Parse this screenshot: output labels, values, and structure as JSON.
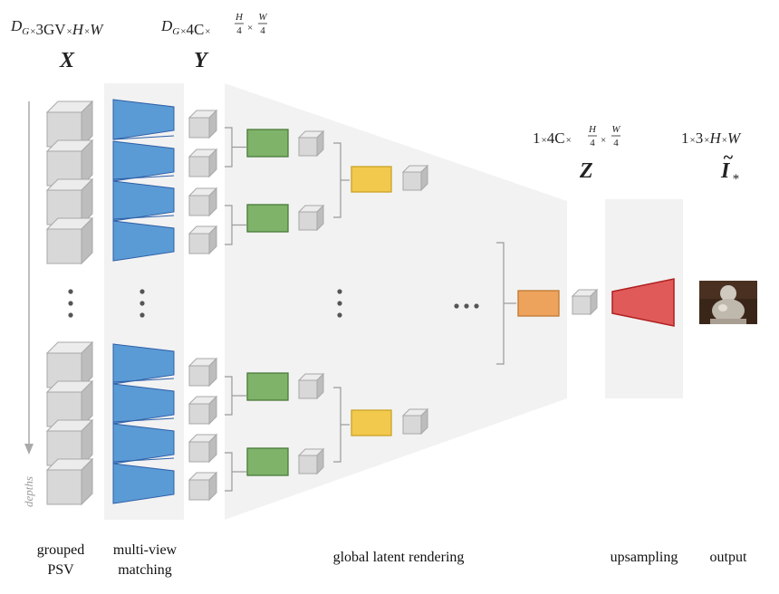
{
  "top_dims": {
    "x_dim": {
      "a": "D",
      "a_sub": "G",
      "b": "3GV",
      "c": "H",
      "d": "W"
    },
    "y_dim": {
      "a": "D",
      "a_sub": "G",
      "b": "4C",
      "h_num": "H",
      "h_den": "4",
      "w_num": "W",
      "w_den": "4"
    },
    "z_dim": {
      "a": "1",
      "b": "4C",
      "h_num": "H",
      "h_den": "4",
      "w_num": "W",
      "w_den": "4"
    },
    "i_dim": {
      "a": "1",
      "b": "3",
      "c": "H",
      "d": "W"
    },
    "times": "×"
  },
  "symbols": {
    "x": "X",
    "y": "Y",
    "z": "Z",
    "i": "I",
    "i_tilde": "~",
    "i_sub": "*"
  },
  "depths_label": "depths",
  "stage_labels": {
    "grouped_1": "grouped",
    "grouped_2": "PSV",
    "matching_1": "multi-view",
    "matching_2": "matching",
    "rendering": "global latent rendering",
    "upsampling": "upsampling",
    "output": "output"
  },
  "colors": {
    "cube": "#d8d8d8",
    "cube_edge": "#a8a8a8",
    "blue": "#5b9bd5",
    "blue_edge": "#2e5fa8",
    "green": "#7fb36a",
    "green_edge": "#4a7a3a",
    "yellow": "#f2c94c",
    "yellow_edge": "#c9a227",
    "orange": "#eda35c",
    "orange_edge": "#c07830",
    "red": "#e05a5a",
    "red_edge": "#b02020",
    "panel": "#f2f2f2"
  }
}
